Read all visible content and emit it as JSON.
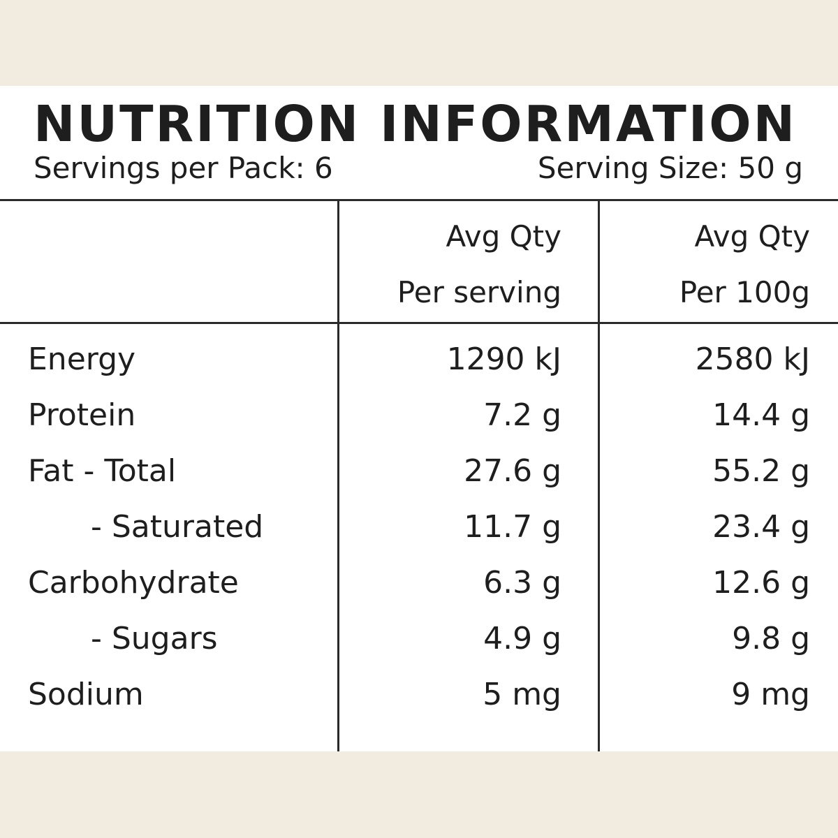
{
  "title": "NUTRITION INFORMATION",
  "servings_per_pack": "Servings per Pack: 6",
  "serving_size": "Serving Size: 50 g",
  "columns": [
    {
      "line1": "Avg Qty",
      "line2": "Per serving"
    },
    {
      "line1": "Avg Qty",
      "line2": "Per 100g"
    }
  ],
  "rows": [
    {
      "label": "Energy",
      "per_serving": "1290 kJ",
      "per_100g": "2580 kJ",
      "sub": false
    },
    {
      "label": "Protein",
      "per_serving": "7.2 g",
      "per_100g": "14.4 g",
      "sub": false
    },
    {
      "label": "Fat - Total",
      "per_serving": "27.6 g",
      "per_100g": "55.2 g",
      "sub": false
    },
    {
      "label": "- Saturated",
      "per_serving": "11.7 g",
      "per_100g": "23.4 g",
      "sub": true
    },
    {
      "label": "Carbohydrate",
      "per_serving": "6.3 g",
      "per_100g": "12.6 g",
      "sub": false
    },
    {
      "label": "- Sugars",
      "per_serving": "4.9 g",
      "per_100g": "9.8 g",
      "sub": true
    },
    {
      "label": "Sodium",
      "per_serving": "5 mg",
      "per_100g": "9 mg",
      "sub": false
    }
  ],
  "colors": {
    "background": "#f1ebe0",
    "panel": "#ffffff",
    "ink": "#1e1e1e"
  }
}
